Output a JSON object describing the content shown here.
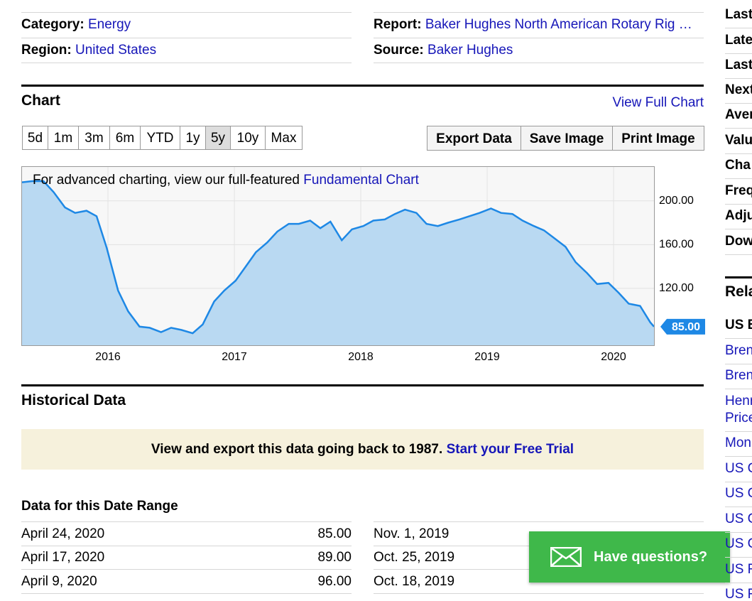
{
  "info": {
    "category": {
      "label": "Category:",
      "value": "Energy"
    },
    "region": {
      "label": "Region:",
      "value": "United States"
    },
    "report": {
      "label": "Report:",
      "value": "Baker Hughes North American Rotary Rig …"
    },
    "source": {
      "label": "Source:",
      "value": "Baker Hughes"
    }
  },
  "chart_section": {
    "title": "Chart",
    "view_full": "View Full Chart",
    "ranges": [
      "5d",
      "1m",
      "3m",
      "6m",
      "YTD",
      "1y",
      "5y",
      "10y",
      "Max"
    ],
    "active_range": 6,
    "actions": [
      "Export Data",
      "Save Image",
      "Print Image"
    ],
    "note": "For advanced charting, view our full-featured",
    "note_link": "Fundamental Chart"
  },
  "chart_data": {
    "type": "area",
    "color": "#1e88e5",
    "fill": "#b9d9f2",
    "x": [
      2015.32,
      2015.4,
      2015.49,
      2015.57,
      2015.66,
      2015.74,
      2015.83,
      2015.91,
      2015.99,
      2016.08,
      2016.16,
      2016.25,
      2016.33,
      2016.42,
      2016.5,
      2016.58,
      2016.67,
      2016.75,
      2016.84,
      2016.92,
      2017.01,
      2017.09,
      2017.17,
      2017.26,
      2017.34,
      2017.43,
      2017.51,
      2017.6,
      2017.68,
      2017.76,
      2017.85,
      2017.93,
      2018.02,
      2018.1,
      2018.19,
      2018.27,
      2018.35,
      2018.44,
      2018.52,
      2018.61,
      2018.69,
      2018.78,
      2018.86,
      2018.94,
      2019.03,
      2019.11,
      2019.2,
      2019.28,
      2019.37,
      2019.45,
      2019.53,
      2019.62,
      2019.7,
      2019.79,
      2019.87,
      2019.96,
      2020.04,
      2020.12,
      2020.21,
      2020.29,
      2020.32
    ],
    "values": [
      217,
      218,
      218,
      208,
      194,
      189,
      191,
      186,
      157,
      118,
      99,
      85,
      84,
      80,
      84,
      82,
      79,
      87,
      108,
      118,
      127,
      140,
      153,
      162,
      172,
      179,
      179,
      182,
      175,
      181,
      164,
      174,
      177,
      182,
      183,
      188,
      192,
      189,
      179,
      177,
      180,
      183,
      186,
      189,
      193,
      189,
      188,
      182,
      177,
      173,
      166,
      158,
      144,
      134,
      124,
      125,
      116,
      106,
      104,
      89,
      85
    ],
    "value_labels": [
      null,
      null,
      null,
      null,
      null,
      null,
      null,
      null,
      null,
      null,
      null,
      null,
      null,
      null,
      null,
      null,
      null,
      null,
      null,
      null,
      null,
      null,
      null,
      null,
      null,
      null,
      null,
      null,
      null,
      null,
      null,
      null,
      null,
      null,
      null,
      null,
      null,
      null,
      null,
      null,
      null,
      null,
      null,
      null,
      null,
      null,
      null,
      null,
      null,
      null,
      null,
      null,
      null,
      null,
      null,
      null,
      null,
      null,
      null,
      null,
      "85.00"
    ],
    "xlim": [
      2015.32,
      2020.32
    ],
    "xticks": [
      2016,
      2017,
      2018,
      2019,
      2020
    ],
    "ylim": [
      68,
      231
    ],
    "yticks": [
      {
        "value": 120,
        "label": "120.00"
      },
      {
        "value": 160,
        "label": "160.00"
      },
      {
        "value": 200,
        "label": "200.00"
      }
    ],
    "grid": true
  },
  "historical": {
    "title": "Historical Data",
    "banner": "View and export this data going back to 1987.",
    "banner_link": "Start your Free Trial",
    "range_title": "Data for this Date Range",
    "rows_left": [
      [
        "April 24, 2020",
        "85.00"
      ],
      [
        "April 17, 2020",
        "89.00"
      ],
      [
        "April 9, 2020",
        "96.00"
      ]
    ],
    "rows_right": [
      "Nov. 1, 2019",
      "Oct. 25, 2019",
      "Oct. 18, 2019"
    ]
  },
  "chat": "Have questions?",
  "sidebar": {
    "items": [
      "Last",
      "Late",
      "Last",
      "Next",
      "Aver",
      "Valu",
      "Cha",
      "Freq",
      "Adju",
      "Dow"
    ],
    "related_title": "Rela",
    "related": [
      "US E",
      "Bren",
      "Bren",
      [
        "Henr",
        "Price"
      ],
      "Mon",
      "US C",
      "US C",
      "US C",
      "US C",
      "US F",
      "US F"
    ]
  }
}
